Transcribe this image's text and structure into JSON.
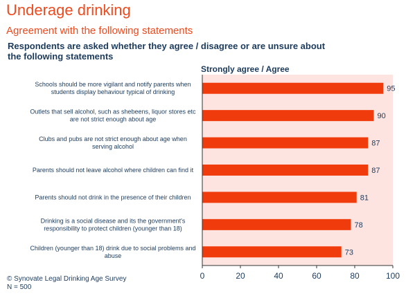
{
  "title": "Underage drinking",
  "subtitle": "Agreement with the following statements",
  "question": "Respondents are asked whether they agree / disagree or are unsure about the following statements",
  "measure_label": "Strongly agree / Agree",
  "source_line": "© Synovate Legal Drinking Age Survey",
  "n_line": "N = 500",
  "colors": {
    "bar": "#f03c0c",
    "plot_bg": "#fde4e0",
    "text": "#1b3a5c",
    "title": "#ee4a1f"
  },
  "chart_data": {
    "type": "bar",
    "orientation": "horizontal",
    "categories": [
      [
        "Schools should be more vigilant and notify parents when",
        "students display behaviour typical of drinking"
      ],
      [
        "Outlets that sell alcohol, such as shebeens, liquor stores etc",
        "are not strict enough about age"
      ],
      [
        "Clubs and pubs are not strict enough about age when",
        "serving alcohol"
      ],
      [
        "Parents should not leave alcohol where children can find it"
      ],
      [
        "Parents should not drink in the presence of their children"
      ],
      [
        "Drinking is a social disease and its the government's",
        "responsibility to protect children (younger than 18)"
      ],
      [
        "Children (younger than 18) drink due to social problems and",
        "abuse"
      ]
    ],
    "values": [
      95,
      90,
      87,
      87,
      81,
      78,
      73
    ],
    "xlim": [
      0,
      100
    ],
    "xticks": [
      0,
      20,
      40,
      60,
      80,
      100
    ],
    "grid": false
  }
}
